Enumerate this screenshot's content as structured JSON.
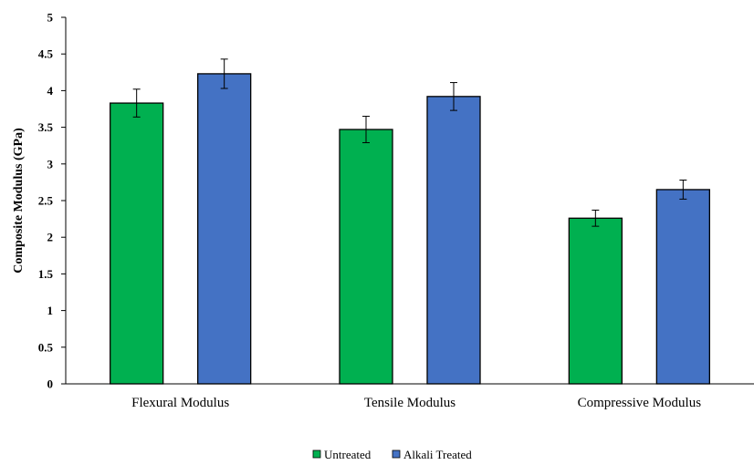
{
  "chart_data": {
    "type": "bar",
    "categories": [
      "Flexural Modulus",
      "Tensile Modulus",
      "Compressive Modulus"
    ],
    "series": [
      {
        "name": "Untreated",
        "color": "#00B050",
        "values": [
          3.83,
          3.47,
          2.26
        ],
        "errors": [
          0.19,
          0.18,
          0.11
        ]
      },
      {
        "name": "Alkali Treated",
        "color": "#4472C4",
        "values": [
          4.23,
          3.92,
          2.65
        ],
        "errors": [
          0.2,
          0.19,
          0.13
        ]
      }
    ],
    "title": "",
    "xlabel": "",
    "ylabel": "Composite Modulus (GPa)",
    "ylim": [
      0,
      5
    ],
    "yticks": [
      "0",
      "0.5",
      "1",
      "1.5",
      "2",
      "2.5",
      "3",
      "3.5",
      "4",
      "4.5",
      "5"
    ],
    "grid": false,
    "legend": "bottom-center"
  }
}
